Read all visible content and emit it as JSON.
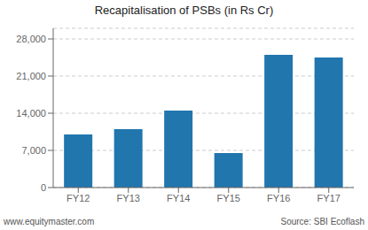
{
  "chart_data": {
    "type": "bar",
    "title": "Recapitalisation of PSBs (in Rs Cr)",
    "categories": [
      "FY12",
      "FY13",
      "FY14",
      "FY15",
      "FY16",
      "FY17"
    ],
    "values": [
      10000,
      11000,
      14500,
      6500,
      25000,
      24500
    ],
    "color": "#2176AE",
    "ylim": [
      0,
      30000
    ],
    "yticks": [
      0,
      {
        "value": 7000,
        "label": "7,000"
      },
      {
        "value": 14000,
        "label": "14,000"
      },
      {
        "value": 21000,
        "label": "21,000"
      },
      {
        "value": 28000,
        "label": "28,000"
      }
    ],
    "grid": true,
    "annotations": [
      "www.equitymaster.com",
      "Source: SBI Ecoflash"
    ]
  }
}
